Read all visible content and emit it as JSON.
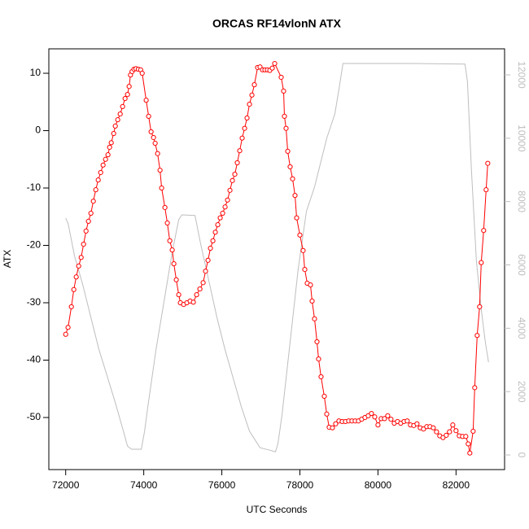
{
  "chart_data": {
    "type": "line",
    "title": "ORCAS RF14vlonN ATX",
    "x_label": "UTC Seconds",
    "y_label": "ATX",
    "xlim": [
      71568,
      83244
    ],
    "ylim": [
      -59.08,
      14.26
    ],
    "y2lim": [
      -462,
      12822
    ],
    "xticks": [
      72000,
      74000,
      76000,
      78000,
      80000,
      82000
    ],
    "yticks": [
      -50,
      -40,
      -30,
      -20,
      -10,
      0,
      10
    ],
    "y2ticks": [
      0,
      2000,
      4000,
      6000,
      8000,
      10000,
      12000
    ],
    "series": [
      {
        "color": "#bebebe",
        "axis": "y2",
        "markers": false,
        "x": [
          72000,
          72063,
          72229,
          72438,
          72646,
          72854,
          73063,
          73271,
          73479,
          73583,
          73688,
          73938,
          74021,
          74104,
          74313,
          74521,
          74729,
          74896,
          74979,
          75313,
          75458,
          75667,
          75875,
          76083,
          76292,
          76500,
          76708,
          76979,
          77229,
          77375,
          77438,
          77542,
          77750,
          77958,
          78167,
          78375,
          78688,
          78896,
          79000,
          79104,
          79521,
          80771,
          82229,
          82292,
          82396,
          82521,
          82646,
          82750,
          82833
        ],
        "values": [
          7480,
          7300,
          6270,
          5370,
          4340,
          3320,
          2490,
          1650,
          750,
          280,
          180,
          180,
          750,
          1520,
          3320,
          4860,
          6400,
          7430,
          7580,
          7560,
          6660,
          5500,
          4340,
          3320,
          2420,
          1520,
          750,
          230,
          150,
          100,
          360,
          1260,
          3570,
          5890,
          7690,
          8460,
          10000,
          10770,
          11540,
          12360,
          12360,
          12360,
          12340,
          11800,
          8970,
          6140,
          4600,
          3570,
          2930
        ]
      },
      {
        "color": "#ff0000",
        "markers": true,
        "x": [
          72000,
          72060,
          72146,
          72208,
          72270,
          72333,
          72396,
          72458,
          72521,
          72583,
          72646,
          72708,
          72771,
          72833,
          72896,
          72958,
          73021,
          73083,
          73125,
          73167,
          73229,
          73271,
          73333,
          73396,
          73458,
          73521,
          73583,
          73625,
          73660,
          73700,
          73750,
          73800,
          73860,
          73920,
          73960,
          74062,
          74125,
          74188,
          74250,
          74292,
          74354,
          74417,
          74458,
          74542,
          74604,
          74667,
          74729,
          74771,
          74833,
          74896,
          74938,
          75021,
          75104,
          75188,
          75271,
          75354,
          75438,
          75521,
          75583,
          75646,
          75708,
          75771,
          75833,
          75896,
          75958,
          76021,
          76083,
          76146,
          76208,
          76271,
          76333,
          76396,
          76458,
          76521,
          76583,
          76646,
          76708,
          76771,
          76833,
          76917,
          76979,
          77042,
          77104,
          77167,
          77229,
          77292,
          77354,
          77521,
          77583,
          77604,
          77646,
          77688,
          77750,
          77813,
          77875,
          77917,
          78000,
          78083,
          78125,
          78188,
          78271,
          78313,
          78375,
          78438,
          78479,
          78542,
          78625,
          78688,
          78750,
          78833,
          78917,
          79000,
          79083,
          79167,
          79250,
          79333,
          79417,
          79500,
          79583,
          79667,
          79750,
          79833,
          79917,
          80000,
          80083,
          80167,
          80250,
          80333,
          80417,
          80500,
          80583,
          80667,
          80750,
          80833,
          80917,
          81000,
          81083,
          81167,
          81250,
          81333,
          81417,
          81500,
          81583,
          81667,
          81750,
          81833,
          81917,
          82000,
          82083,
          82167,
          82250,
          82313,
          82354,
          82438,
          82479,
          82542,
          82604,
          82646,
          82708,
          82771,
          82813
        ],
        "values": [
          -35.5,
          -34.3,
          -30.7,
          -27.7,
          -25.5,
          -23.6,
          -22.1,
          -19.8,
          -17.5,
          -15.8,
          -14.4,
          -12.3,
          -10.3,
          -8.6,
          -7.3,
          -6.0,
          -5.0,
          -4.2,
          -2.9,
          -2.1,
          -0.5,
          0.8,
          1.9,
          2.9,
          4.2,
          5.6,
          6.3,
          7.7,
          9.7,
          10.3,
          10.7,
          10.8,
          10.7,
          10.6,
          10.0,
          5.3,
          2.5,
          -0.2,
          -1.2,
          -2.2,
          -4.0,
          -6.9,
          -10.0,
          -13.4,
          -16.1,
          -19.2,
          -20.8,
          -23.2,
          -26.0,
          -28.6,
          -30.0,
          -30.3,
          -30.0,
          -29.7,
          -29.9,
          -28.6,
          -27.6,
          -26.5,
          -24.5,
          -22.6,
          -20.5,
          -19.2,
          -17.7,
          -16.4,
          -15.2,
          -14.4,
          -13.3,
          -12.1,
          -10.4,
          -8.7,
          -7.6,
          -5.6,
          -3.5,
          -1.3,
          0.4,
          2.2,
          4.6,
          6.2,
          8.0,
          11.0,
          11.1,
          10.6,
          10.6,
          10.6,
          10.5,
          10.9,
          11.7,
          9.3,
          6.9,
          2.5,
          0.4,
          -3.6,
          -6.3,
          -8.4,
          -11.3,
          -15.2,
          -18.2,
          -20.9,
          -24.2,
          -26.6,
          -26.9,
          -29.7,
          -32.8,
          -36.8,
          -39.8,
          -42.9,
          -46.3,
          -49.4,
          -51.7,
          -51.8,
          -51.1,
          -50.6,
          -50.7,
          -50.7,
          -50.6,
          -50.6,
          -50.6,
          -50.6,
          -50.3,
          -50.0,
          -49.7,
          -49.3,
          -49.9,
          -51.3,
          -50.2,
          -50.2,
          -49.7,
          -50.3,
          -51.0,
          -50.7,
          -51.0,
          -50.7,
          -50.6,
          -51.3,
          -51.4,
          -51.1,
          -51.8,
          -52.0,
          -51.6,
          -51.6,
          -51.8,
          -52.5,
          -53.2,
          -53.5,
          -53.1,
          -52.5,
          -51.3,
          -52.3,
          -53.2,
          -53.3,
          -53.3,
          -54.6,
          -56.2,
          -52.4,
          -44.8,
          -35.7,
          -30.7,
          -23.0,
          -17.4,
          -10.3,
          -5.7
        ]
      }
    ]
  }
}
